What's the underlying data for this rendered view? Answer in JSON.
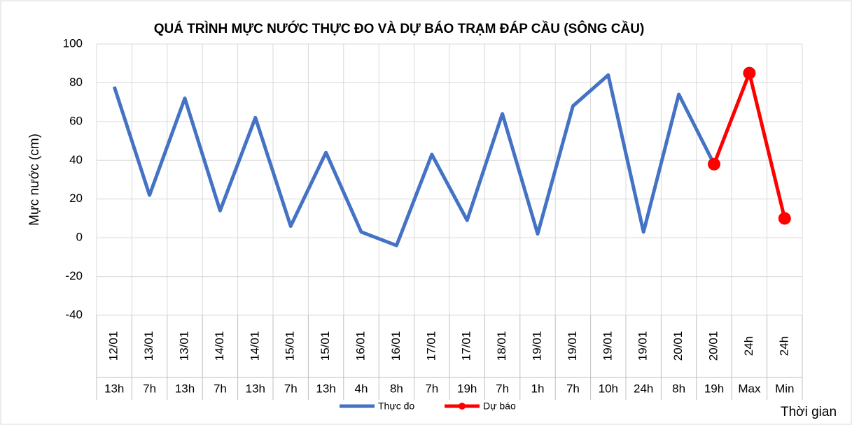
{
  "chart_data": {
    "type": "line",
    "title": "QUÁ TRÌNH MỰC NƯỚC THỰC ĐO VÀ DỰ BÁO TRẠM ĐÁP CẦU (SÔNG CẦU)",
    "y_label": "Mực nước (cm)",
    "x_label": "Thời gian",
    "categories": [
      [
        "12/01",
        "13h"
      ],
      [
        "13/01",
        "7h"
      ],
      [
        "13/01",
        "13h"
      ],
      [
        "14/01",
        "7h"
      ],
      [
        "14/01",
        "13h"
      ],
      [
        "15/01",
        "7h"
      ],
      [
        "15/01",
        "13h"
      ],
      [
        "16/01",
        "4h"
      ],
      [
        "16/01",
        "8h"
      ],
      [
        "17/01",
        "7h"
      ],
      [
        "17/01",
        "19h"
      ],
      [
        "18/01",
        "7h"
      ],
      [
        "19/01",
        "1h"
      ],
      [
        "19/01",
        "7h"
      ],
      [
        "19/01",
        "10h"
      ],
      [
        "19/01",
        "24h"
      ],
      [
        "20/01",
        "8h"
      ],
      [
        "20/01",
        "19h"
      ],
      [
        "24h",
        "Max"
      ],
      [
        "24h",
        "Min"
      ]
    ],
    "series": [
      {
        "name": "Thực đo",
        "color": "#4472c4",
        "marker": false,
        "values": [
          78,
          22,
          72,
          14,
          62,
          6,
          44,
          3,
          -4,
          43,
          9,
          64,
          2,
          68,
          84,
          3,
          74,
          38,
          null,
          null
        ]
      },
      {
        "name": "Dự báo",
        "color": "#ff0000",
        "marker": true,
        "values": [
          null,
          null,
          null,
          null,
          null,
          null,
          null,
          null,
          null,
          null,
          null,
          null,
          null,
          null,
          null,
          null,
          null,
          38,
          85,
          10
        ]
      }
    ],
    "ylim": [
      -40,
      100
    ],
    "yticks": [
      -40,
      -20,
      0,
      20,
      40,
      60,
      80,
      100
    ],
    "grid": true,
    "legend": "bottom"
  }
}
